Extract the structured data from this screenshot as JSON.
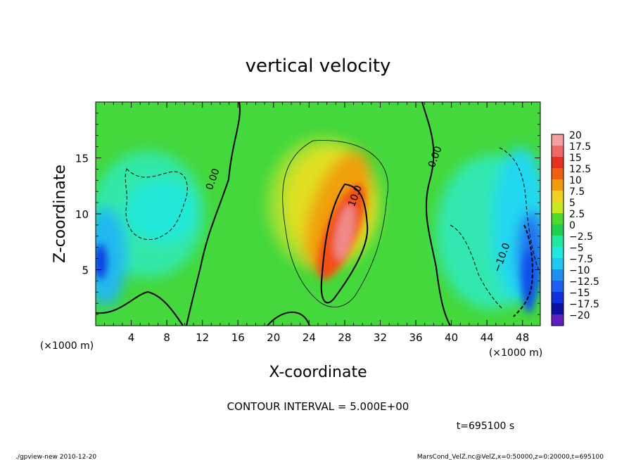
{
  "chart_data": {
    "type": "heatmap",
    "title": "vertical velocity",
    "xlabel": "X-coordinate",
    "ylabel": "Z-coordinate",
    "x_unit_label": "(×1000 m)",
    "y_unit_label": "(×1000 m)",
    "xlim": [
      0,
      50
    ],
    "ylim": [
      0,
      20
    ],
    "x_ticks": [
      4,
      8,
      12,
      16,
      20,
      24,
      28,
      32,
      36,
      40,
      44,
      48
    ],
    "y_ticks": [
      5,
      10,
      15
    ],
    "colorbar": {
      "levels": [
        20,
        17.5,
        15,
        12.5,
        10,
        7.5,
        5,
        2.5,
        0,
        -2.5,
        -5,
        -7.5,
        -10,
        -12.5,
        -15,
        -17.5,
        -20
      ],
      "labels": [
        "20",
        "17.5",
        "15",
        "12.5",
        "10",
        "7.5",
        "5",
        "2.5",
        "0",
        "−2.5",
        "−5",
        "−7.5",
        "−10",
        "−12.5",
        "−15",
        "−17.5",
        "−20"
      ],
      "colors": [
        "#f4a0a0",
        "#f06868",
        "#e83020",
        "#f06010",
        "#f09a10",
        "#f0d020",
        "#c8e820",
        "#50d830",
        "#20d050",
        "#20e8a0",
        "#20e8e0",
        "#20c8f0",
        "#2090f0",
        "#2060f0",
        "#1030e0",
        "#1010a0",
        "#6020c0"
      ]
    },
    "contour_labels": [
      {
        "text": "0.00",
        "x": 13.5,
        "z": 13.0
      },
      {
        "text": "0.00",
        "x": 38.5,
        "z": 15.0
      },
      {
        "text": "10.0",
        "x": 29.5,
        "z": 11.5
      },
      {
        "text": "−10.0",
        "x": 46.0,
        "z": 6.0
      }
    ],
    "annotations": {
      "contour_interval": "CONTOUR INTERVAL = 5.000E+00",
      "time": "t=695100 s",
      "footer_left": "./gpview-new 2010-12-20",
      "footer_right": "MarsCond_VelZ.nc@VelZ,x=0:50000,z=0:20000,t=695100"
    }
  }
}
